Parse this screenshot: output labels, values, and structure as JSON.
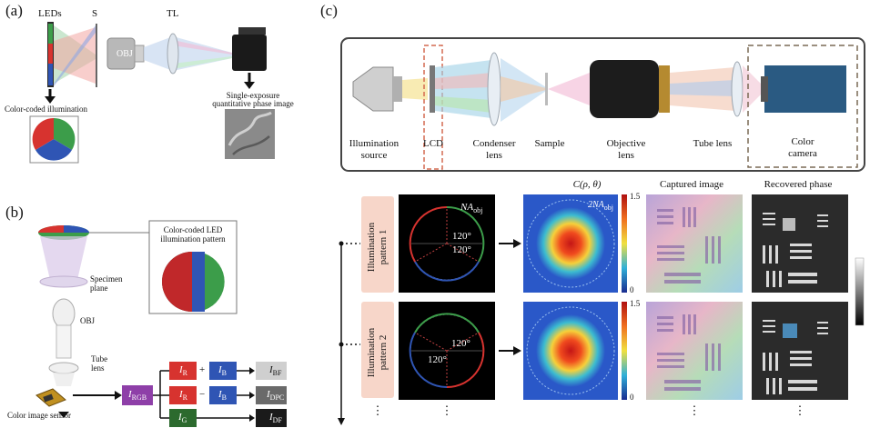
{
  "panels": {
    "a": {
      "letter": "(a)",
      "leds": "LEDs",
      "s": "S",
      "obj": "OBJ",
      "tl": "TL",
      "color_coded": "Color-coded illumination",
      "single_exposure_1": "Single-exposure",
      "single_exposure_2": "quantitative phase image"
    },
    "b": {
      "letter": "(b)",
      "pattern_1": "Color-coded LED",
      "pattern_2": "illumination pattern",
      "specimen_1": "Specimen",
      "specimen_2": "plane",
      "obj": "OBJ",
      "tube_1": "Tube",
      "tube_2": "lens",
      "sensor": "Color image sensor",
      "i_rgb": "I",
      "i_rgb_sub": "RGB",
      "i_r": "I",
      "i_r_sub": "R",
      "i_b": "I",
      "i_b_sub": "B",
      "i_g": "I",
      "i_g_sub": "G",
      "plus": "+",
      "minus": "−",
      "i_bf_sub": "BF",
      "i_dpc_sub": "DPC",
      "i_df_sub": "DF",
      "i_out": "I"
    },
    "c": {
      "letter": "(c)",
      "setup_labels": {
        "illum_1": "Illumination",
        "illum_2": "source",
        "lcd": "LCD",
        "condenser_1": "Condenser",
        "condenser_2": "lens",
        "sample": "Sample",
        "objective_1": "Objective",
        "objective_2": "lens",
        "tube_1": "Tube lens",
        "camera_1": "Color",
        "camera_2": "camera"
      },
      "col_headers": {
        "ctf": "C(ρ, θ)",
        "captured": "Captured image",
        "recovered": "Recovered phase"
      },
      "rows": [
        {
          "label_1": "Illumination",
          "label_2": "pattern 1",
          "na": "NA",
          "na_sub": "obj",
          "angle_a": "120°",
          "angle_b": "120°",
          "na2": "2NA",
          "na2_sub": "obj",
          "cb_max": "1.5",
          "cb_min": "0"
        },
        {
          "label_1": "Illumination",
          "label_2": "pattern 2",
          "angle_a": "120°",
          "angle_b": "120°",
          "cb_max": "1.5",
          "cb_min": "0"
        }
      ],
      "ellipsis": "⋮"
    }
  },
  "colors": {
    "red": "#d7332f",
    "green": "#3c9d4a",
    "blue": "#2f55b4",
    "pink_box": "#f7d6c9",
    "dashed_red": "#d46a50",
    "dashed_brown": "#7a6a55"
  }
}
